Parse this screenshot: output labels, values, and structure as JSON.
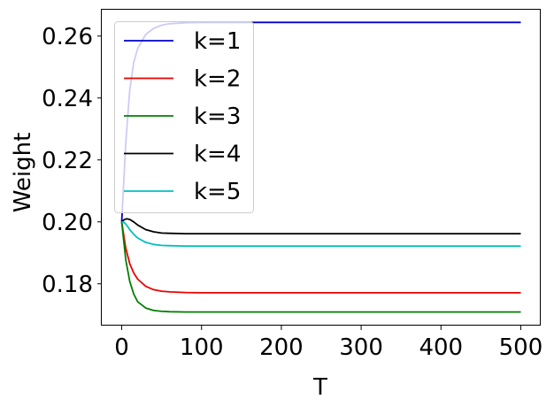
{
  "chart_data": {
    "type": "line",
    "title": "",
    "xlabel": "T",
    "ylabel": "Weight",
    "xlim": [
      -25,
      525
    ],
    "ylim": [
      0.1665,
      0.2685
    ],
    "xticks": [
      0,
      100,
      200,
      300,
      400,
      500
    ],
    "yticks": [
      0.18,
      0.2,
      0.22,
      0.24,
      0.26
    ],
    "xtick_labels": [
      "0",
      "100",
      "200",
      "300",
      "400",
      "500"
    ],
    "ytick_labels": [
      "0.18",
      "0.20",
      "0.22",
      "0.24",
      "0.26"
    ],
    "grid": false,
    "legend_position": "top-left",
    "series": [
      {
        "name": "k=1",
        "color": "#0000cc",
        "x": [
          0,
          5,
          10,
          15,
          20,
          30,
          40,
          50,
          60,
          80,
          100,
          130,
          160,
          200,
          300,
          400,
          500
        ],
        "y": [
          0.2,
          0.2255,
          0.2425,
          0.2515,
          0.256,
          0.2605,
          0.2625,
          0.2635,
          0.264,
          0.2643,
          0.2644,
          0.2644,
          0.2644,
          0.2644,
          0.2644,
          0.2644,
          0.2644
        ]
      },
      {
        "name": "k=2",
        "color": "#ee0000",
        "x": [
          0,
          5,
          10,
          15,
          20,
          30,
          40,
          50,
          60,
          80,
          100,
          150,
          200,
          300,
          400,
          500
        ],
        "y": [
          0.2,
          0.1915,
          0.1865,
          0.1835,
          0.1815,
          0.1792,
          0.1781,
          0.1776,
          0.1774,
          0.1772,
          0.1771,
          0.1771,
          0.1771,
          0.1771,
          0.1771,
          0.1771
        ]
      },
      {
        "name": "k=3",
        "color": "#008000",
        "x": [
          0,
          5,
          10,
          15,
          20,
          30,
          40,
          50,
          60,
          80,
          100,
          150,
          200,
          300,
          400,
          500
        ],
        "y": [
          0.2,
          0.1878,
          0.1808,
          0.1767,
          0.1742,
          0.1722,
          0.1714,
          0.1711,
          0.171,
          0.1709,
          0.1709,
          0.1709,
          0.1709,
          0.1709,
          0.1709,
          0.1709
        ]
      },
      {
        "name": "k=4",
        "color": "#000000",
        "x": [
          0,
          3,
          6,
          10,
          15,
          20,
          30,
          40,
          50,
          60,
          80,
          100,
          150,
          200,
          300,
          400,
          500
        ],
        "y": [
          0.2,
          0.2007,
          0.201,
          0.2008,
          0.2,
          0.199,
          0.1975,
          0.1968,
          0.1964,
          0.1963,
          0.1962,
          0.1962,
          0.1962,
          0.1962,
          0.1962,
          0.1962,
          0.1962
        ]
      },
      {
        "name": "k=5",
        "color": "#00bfbf",
        "x": [
          0,
          3,
          6,
          10,
          15,
          20,
          30,
          40,
          50,
          60,
          80,
          100,
          150,
          200,
          300,
          400,
          500
        ],
        "y": [
          0.2,
          0.1998,
          0.199,
          0.1975,
          0.196,
          0.1948,
          0.1934,
          0.1927,
          0.1924,
          0.1923,
          0.1922,
          0.1922,
          0.1922,
          0.1922,
          0.1922,
          0.1922,
          0.1922
        ]
      }
    ]
  }
}
